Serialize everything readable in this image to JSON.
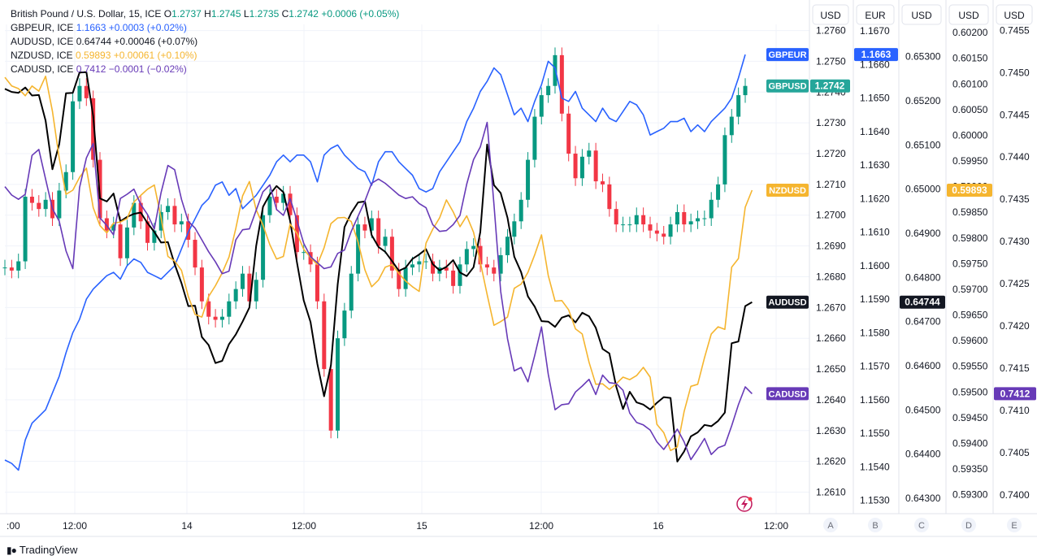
{
  "legend": {
    "main": {
      "symbol": "British Pound / U.S. Dollar, 15, ICE",
      "o_label": "O",
      "o": "1.2737",
      "h_label": "H",
      "h": "1.2745",
      "l_label": "L",
      "l": "1.2735",
      "c_label": "C",
      "c": "1.2742",
      "chg": "+0.0006 (+0.05%)"
    },
    "rows": [
      {
        "symbol": "GBPEUR, ICE",
        "value": "1.1663",
        "chg": "+0.0003 (+0.02%)",
        "color": "#2962ff"
      },
      {
        "symbol": "AUDUSD, ICE",
        "value": "0.64744",
        "chg": "+0.00046 (+0.07%)",
        "color": "#131722"
      },
      {
        "symbol": "NZDUSD, ICE",
        "value": "0.59893",
        "chg": "+0.00061 (+0.10%)",
        "color": "#f5b52f"
      },
      {
        "symbol": "CADUSD, ICE",
        "value": "0.7412",
        "chg": "−0.0001 (−0.02%)",
        "color": "#673ab7"
      }
    ]
  },
  "brand": "TradingView",
  "colors": {
    "gbpusd_up": "#089981",
    "gbpusd_down": "#f23645",
    "gbpeur": "#2962ff",
    "audusd": "#000000",
    "nzdusd": "#f5b52f",
    "cadusd": "#673ab7",
    "grid": "#f0f3fa",
    "axis_text": "#131722",
    "border": "#e0e3eb"
  },
  "chart_data": {
    "type": "line",
    "x_labels": [
      ":00",
      "12:00",
      "14",
      "12:00",
      "15",
      "12:00",
      "16",
      "12:00"
    ],
    "currency_headers": [
      "USD",
      "EUR",
      "USD",
      "USD",
      "USD"
    ],
    "scale_letters": [
      "A",
      "B",
      "C",
      "D",
      "E"
    ],
    "axes": {
      "A": {
        "currency": "USD",
        "ticks": [
          "1.2760",
          "1.2750",
          "1.2740",
          "1.2730",
          "1.2720",
          "1.2710",
          "1.2700",
          "1.2690",
          "1.2680",
          "1.2670",
          "1.2660",
          "1.2650",
          "1.2640",
          "1.2630",
          "1.2620",
          "1.2610"
        ],
        "range": [
          1.2603,
          1.2762
        ]
      },
      "B": {
        "currency": "EUR",
        "ticks": [
          "1.1670",
          "1.1660",
          "1.1650",
          "1.1640",
          "1.1630",
          "1.1620",
          "1.1610",
          "1.1600",
          "1.1590",
          "1.1580",
          "1.1570",
          "1.1560",
          "1.1550",
          "1.1540",
          "1.1530"
        ],
        "range": [
          1.1526,
          1.1672
        ]
      },
      "C": {
        "currency": "USD",
        "ticks": [
          "0.65300",
          "0.65200",
          "0.65100",
          "0.65000",
          "0.64900",
          "0.64800",
          "0.64700",
          "0.64600",
          "0.64500",
          "0.64400",
          "0.64300"
        ],
        "range": [
          0.64265,
          0.65373
        ]
      },
      "D": {
        "currency": "USD",
        "ticks": [
          "0.60200",
          "0.60150",
          "0.60100",
          "0.60050",
          "0.60000",
          "0.59950",
          "0.59900",
          "0.59850",
          "0.59800",
          "0.59750",
          "0.59700",
          "0.59650",
          "0.59600",
          "0.59550",
          "0.59500",
          "0.59450",
          "0.59400",
          "0.59350",
          "0.59300"
        ],
        "range": [
          0.59263,
          0.60216
        ]
      },
      "E": {
        "currency": "USD",
        "ticks": [
          "0.7455",
          "0.7450",
          "0.7445",
          "0.7440",
          "0.7435",
          "0.7430",
          "0.7425",
          "0.7420",
          "0.7415",
          "0.7410",
          "0.7405",
          "0.7400"
        ],
        "range": [
          0.73978,
          0.74557
        ]
      }
    },
    "series": [
      {
        "name": "GBPUSD",
        "axis": "A",
        "style": "candles",
        "last": "1.2742",
        "values": [
          1.2683,
          1.2682,
          1.2685,
          1.2706,
          1.2704,
          1.2702,
          1.2705,
          1.2699,
          1.2708,
          1.2714,
          1.2737,
          1.2742,
          1.2738,
          1.2718,
          1.2699,
          1.2695,
          1.2697,
          1.2686,
          1.2696,
          1.2704,
          1.2698,
          1.2691,
          1.2695,
          1.2701,
          1.2703,
          1.2697,
          1.2698,
          1.2692,
          1.2683,
          1.2672,
          1.2667,
          1.2666,
          1.2667,
          1.2672,
          1.2676,
          1.2681,
          1.2672,
          1.2679,
          1.27,
          1.2706,
          1.2704,
          1.2707,
          1.27,
          1.2688,
          1.2688,
          1.2684,
          1.2672,
          1.265,
          1.263,
          1.266,
          1.2669,
          1.2681,
          1.2697,
          1.2695,
          1.2699,
          1.269,
          1.2693,
          1.2682,
          1.2676,
          1.2683,
          1.2684,
          1.2685,
          1.2685,
          1.2681,
          1.2683,
          1.2682,
          1.2677,
          1.2684,
          1.2689,
          1.269,
          1.2684,
          1.2683,
          1.2681,
          1.2687,
          1.2693,
          1.2698,
          1.2705,
          1.2718,
          1.2732,
          1.2739,
          1.2742,
          1.2752,
          1.2733,
          1.272,
          1.2712,
          1.2719,
          1.2721,
          1.2711,
          1.271,
          1.2702,
          1.2697,
          1.2697,
          1.2697,
          1.27,
          1.2697,
          1.2695,
          1.2694,
          1.2693,
          1.2697,
          1.2701,
          1.2697,
          1.2698,
          1.2699,
          1.2699,
          1.2705,
          1.271,
          1.2726,
          1.2732,
          1.2739,
          1.2742
        ]
      },
      {
        "name": "GBPEUR",
        "axis": "B",
        "style": "line",
        "last": "1.1663",
        "values": [
          1.1542,
          1.1541,
          1.1539,
          1.1548,
          1.1553,
          1.1555,
          1.1557,
          1.1562,
          1.1567,
          1.1574,
          1.158,
          1.1584,
          1.159,
          1.1593,
          1.1595,
          1.1597,
          1.1598,
          1.1596,
          1.16,
          1.1602,
          1.1601,
          1.1598,
          1.1597,
          1.1596,
          1.1598,
          1.16,
          1.1605,
          1.161,
          1.1614,
          1.1618,
          1.162,
          1.1624,
          1.1625,
          1.1621,
          1.1623,
          1.1617,
          1.1619,
          1.1621,
          1.1624,
          1.1627,
          1.1631,
          1.1633,
          1.1631,
          1.1633,
          1.1633,
          1.1631,
          1.1625,
          1.1633,
          1.1635,
          1.1636,
          1.1633,
          1.1631,
          1.1629,
          1.1628,
          1.1624,
          1.1631,
          1.1634,
          1.1634,
          1.1631,
          1.1629,
          1.1627,
          1.1623,
          1.1622,
          1.1623,
          1.1628,
          1.1631,
          1.1634,
          1.1637,
          1.1643,
          1.1647,
          1.1652,
          1.1655,
          1.1659,
          1.1657,
          1.1651,
          1.1645,
          1.1647,
          1.1643,
          1.1649,
          1.1654,
          1.1661,
          1.1659,
          1.165,
          1.1649,
          1.1652,
          1.1647,
          1.1645,
          1.1643,
          1.1647,
          1.1644,
          1.1643,
          1.1646,
          1.1649,
          1.1648,
          1.1645,
          1.1639,
          1.164,
          1.1641,
          1.1643,
          1.1643,
          1.1644,
          1.164,
          1.1642,
          1.164,
          1.1643,
          1.1645,
          1.1647,
          1.165,
          1.1656,
          1.1663
        ]
      },
      {
        "name": "AUDUSD",
        "axis": "C",
        "style": "line",
        "last": "0.64744",
        "values": [
          0.65227,
          0.6522,
          0.65218,
          0.6523,
          0.65212,
          0.65213,
          0.65155,
          0.65045,
          0.65102,
          0.65217,
          0.65218,
          0.65264,
          0.65265,
          0.65165,
          0.64979,
          0.64972,
          0.6499,
          0.64927,
          0.64937,
          0.64944,
          0.64947,
          0.64923,
          0.64903,
          0.64879,
          0.6488,
          0.6483,
          0.64787,
          0.64735,
          0.64736,
          0.64665,
          0.64647,
          0.64606,
          0.64611,
          0.64649,
          0.64671,
          0.647,
          0.64732,
          0.64871,
          0.6496,
          0.64988,
          0.65007,
          0.64993,
          0.64928,
          0.64834,
          0.64748,
          0.64699,
          0.64604,
          0.64531,
          0.64601,
          0.64784,
          0.64914,
          0.64946,
          0.6497,
          0.64972,
          0.64896,
          0.64869,
          0.64858,
          0.64837,
          0.64815,
          0.64822,
          0.64842,
          0.64852,
          0.64864,
          0.6483,
          0.64816,
          0.64824,
          0.64839,
          0.64811,
          0.64803,
          0.64823,
          0.64903,
          0.65101,
          0.65009,
          0.64991,
          0.64935,
          0.64847,
          0.64812,
          0.64757,
          0.64734,
          0.64701,
          0.647,
          0.64688,
          0.64709,
          0.64714,
          0.64698,
          0.6472,
          0.64712,
          0.64686,
          0.64638,
          0.64628,
          0.64553,
          0.64502,
          0.64541,
          0.64517,
          0.64512,
          0.64501,
          0.64516,
          0.64529,
          0.64527,
          0.64383,
          0.64406,
          0.6444,
          0.64449,
          0.64466,
          0.64463,
          0.64475,
          0.64494,
          0.64651,
          0.64655,
          0.64735,
          0.64744
        ]
      },
      {
        "name": "NZDUSD",
        "axis": "D",
        "style": "line",
        "last": "0.59893",
        "values": [
          0.60113,
          0.60096,
          0.60091,
          0.60077,
          0.60096,
          0.60086,
          0.60115,
          0.60047,
          0.59955,
          0.59885,
          0.59893,
          0.59918,
          0.59936,
          0.59859,
          0.59824,
          0.5981,
          0.59829,
          0.59831,
          0.59838,
          0.5987,
          0.59883,
          0.59895,
          0.59903,
          0.59839,
          0.59764,
          0.59755,
          0.59737,
          0.59686,
          0.59651,
          0.59646,
          0.59686,
          0.59707,
          0.59732,
          0.59763,
          0.59819,
          0.59882,
          0.5991,
          0.59855,
          0.59825,
          0.59787,
          0.59759,
          0.59764,
          0.59827,
          0.59809,
          0.59778,
          0.59762,
          0.59748,
          0.59781,
          0.59828,
          0.59839,
          0.5984,
          0.59832,
          0.59792,
          0.59738,
          0.59705,
          0.59718,
          0.59743,
          0.59748,
          0.59731,
          0.59716,
          0.59705,
          0.59696,
          0.5979,
          0.59817,
          0.59839,
          0.59874,
          0.59851,
          0.59822,
          0.59843,
          0.59811,
          0.59753,
          0.5969,
          0.5963,
          0.59637,
          0.59646,
          0.59702,
          0.5971,
          0.59733,
          0.59767,
          0.59806,
          0.59727,
          0.59677,
          0.59678,
          0.5966,
          0.59623,
          0.59613,
          0.59558,
          0.59515,
          0.59516,
          0.59505,
          0.59516,
          0.59529,
          0.59524,
          0.59532,
          0.59548,
          0.59529,
          0.59437,
          0.59421,
          0.59386,
          0.59393,
          0.59462,
          0.59511,
          0.59515,
          0.59567,
          0.59613,
          0.59627,
          0.59622,
          0.59743,
          0.5976,
          0.5986,
          0.59893
        ]
      },
      {
        "name": "CADUSD",
        "axis": "E",
        "style": "line",
        "last": "0.7412",
        "values": [
          0.74365,
          0.74355,
          0.7435,
          0.74356,
          0.74402,
          0.74409,
          0.74374,
          0.74339,
          0.74324,
          0.74289,
          0.74268,
          0.74364,
          0.74399,
          0.74416,
          0.74328,
          0.74319,
          0.74308,
          0.74351,
          0.74356,
          0.74362,
          0.74344,
          0.74332,
          0.74315,
          0.74358,
          0.7439,
          0.74385,
          0.7435,
          0.74324,
          0.74316,
          0.74302,
          0.74288,
          0.74276,
          0.74262,
          0.74265,
          0.74302,
          0.74314,
          0.74315,
          0.74337,
          0.74359,
          0.74367,
          0.74338,
          0.74331,
          0.74351,
          0.74325,
          0.74298,
          0.74282,
          0.74275,
          0.74268,
          0.7427,
          0.74286,
          0.7429,
          0.74312,
          0.7433,
          0.74348,
          0.74369,
          0.74374,
          0.74369,
          0.74362,
          0.74355,
          0.74351,
          0.74353,
          0.74345,
          0.7434,
          0.7432,
          0.74312,
          0.74313,
          0.7432,
          0.74331,
          0.74368,
          0.74397,
          0.74412,
          0.74441,
          0.74344,
          0.74241,
          0.74185,
          0.74147,
          0.74151,
          0.74134,
          0.74165,
          0.74199,
          0.74143,
          0.74101,
          0.74107,
          0.74108,
          0.74122,
          0.74129,
          0.74137,
          0.74119,
          0.74142,
          0.74133,
          0.74132,
          0.74124,
          0.74097,
          0.74086,
          0.74083,
          0.74077,
          0.74063,
          0.74054,
          0.74065,
          0.74078,
          0.74063,
          0.74042,
          0.74054,
          0.74067,
          0.74048,
          0.74056,
          0.74059,
          0.74082,
          0.74107,
          0.74128,
          0.7412
        ]
      }
    ],
    "price_tags": [
      {
        "label": "GBPEUR",
        "color": "#2962ff",
        "axis": "B",
        "value": 1.1663
      },
      {
        "label": "GBPUSD",
        "color": "#26a69a",
        "axis": "A",
        "value": 1.2742,
        "price": "1.2742"
      },
      {
        "label": "NZDUSD",
        "color": "#f5b52f",
        "axis": "D",
        "value": 0.59893
      },
      {
        "label": "AUDUSD",
        "color": "#131722",
        "axis": "C",
        "value": 0.64744
      },
      {
        "label": "CADUSD",
        "color": "#673ab7",
        "axis": "E",
        "value": 0.7412
      }
    ],
    "axis_tags": [
      {
        "axis": "B",
        "value": 1.1663,
        "text": "1.1663",
        "color": "#2962ff"
      },
      {
        "axis": "C",
        "value": 0.64744,
        "text": "0.64744",
        "color": "#131722"
      },
      {
        "axis": "D",
        "value": 0.59893,
        "text": "0.59893",
        "color": "#f5b52f"
      },
      {
        "axis": "E",
        "value": 0.7412,
        "text": "0.7412",
        "color": "#673ab7"
      }
    ],
    "grid": true
  }
}
